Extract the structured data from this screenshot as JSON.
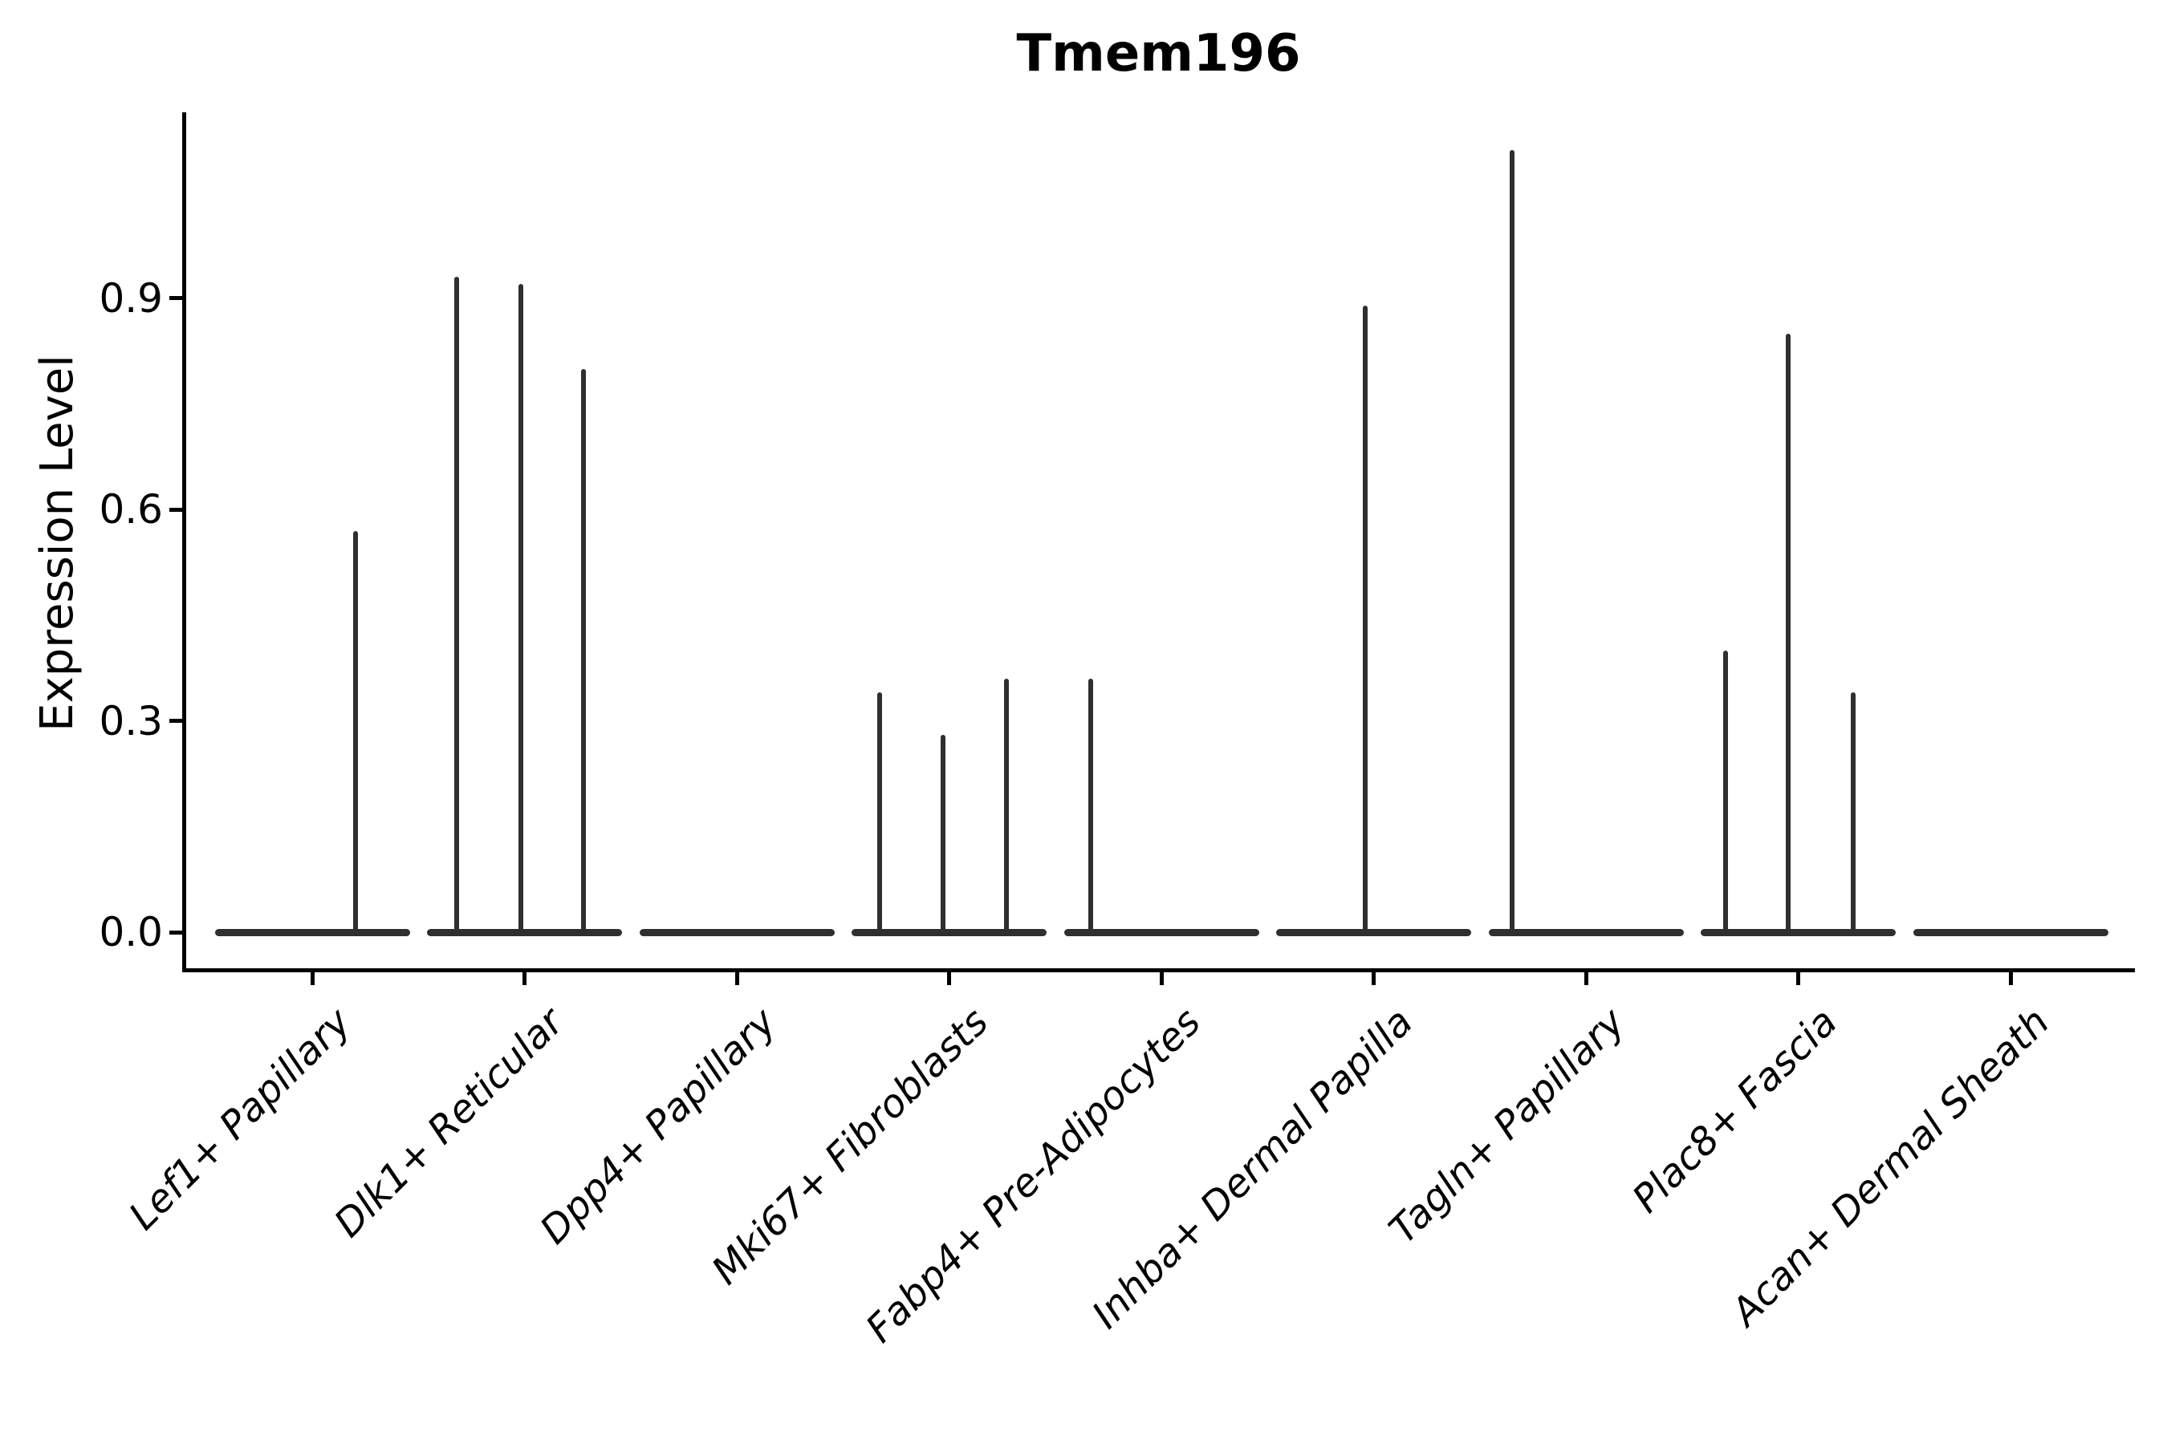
{
  "title": "Tmem196",
  "ylabel": "Expression Level",
  "colors": {
    "violin": "#2f2f2f",
    "axis": "#000000",
    "text": "#000000",
    "background": "#ffffff"
  },
  "chart_data": {
    "type": "violin",
    "title": "Tmem196",
    "xlabel": "",
    "ylabel": "Expression Level",
    "ylim": [
      -0.05,
      1.16
    ],
    "yticks": [
      0.0,
      0.3,
      0.6,
      0.9
    ],
    "ytick_labels": [
      "0.0",
      "0.3",
      "0.6",
      "0.9"
    ],
    "grid": false,
    "legend": "none",
    "categories": [
      "Lef1+ Papillary",
      "Dlk1+ Reticular",
      "Dpp4+ Papillary",
      "Mki67+ Fibroblasts",
      "Fabp4+ Pre-Adipocytes",
      "Inhba+ Dermal Papilla",
      "Tagln+ Papillary",
      "Plac8+ Fascia",
      "Acan+ Dermal Sheath"
    ],
    "series": [
      {
        "category": "Lef1+ Papillary",
        "baseline_value": 0.0,
        "spikes": [
          {
            "offset": 54,
            "value": 0.57
          }
        ]
      },
      {
        "category": "Dlk1+ Reticular",
        "baseline_value": 0.0,
        "spikes": [
          {
            "offset": -85,
            "value": 0.93
          },
          {
            "offset": -5,
            "value": 0.92
          },
          {
            "offset": 73,
            "value": 0.8
          }
        ]
      },
      {
        "category": "Dpp4+ Papillary",
        "baseline_value": 0.0,
        "spikes": []
      },
      {
        "category": "Mki67+ Fibroblasts",
        "baseline_value": 0.0,
        "spikes": [
          {
            "offset": -87,
            "value": 0.34
          },
          {
            "offset": -8,
            "value": 0.28
          },
          {
            "offset": 71,
            "value": 0.36
          }
        ]
      },
      {
        "category": "Fabp4+ Pre-Adipocytes",
        "baseline_value": 0.0,
        "spikes": [
          {
            "offset": -88,
            "value": 0.36
          }
        ]
      },
      {
        "category": "Inhba+ Dermal Papilla",
        "baseline_value": 0.0,
        "spikes": [
          {
            "offset": -11,
            "value": 0.89
          }
        ]
      },
      {
        "category": "Tagln+ Papillary",
        "baseline_value": 0.0,
        "spikes": [
          {
            "offset": -92,
            "value": 1.11
          }
        ]
      },
      {
        "category": "Plac8+ Fascia",
        "baseline_value": 0.0,
        "spikes": [
          {
            "offset": -91,
            "value": 0.4
          },
          {
            "offset": -13,
            "value": 0.85
          },
          {
            "offset": 68,
            "value": 0.34
          }
        ]
      },
      {
        "category": "Acan+ Dermal Sheath",
        "baseline_value": 0.0,
        "spikes": []
      }
    ]
  }
}
